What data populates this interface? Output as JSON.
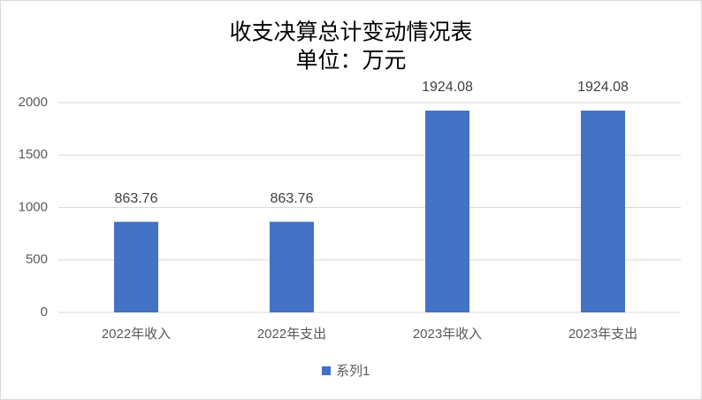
{
  "chart_data": {
    "type": "bar",
    "title": "收支决算总计变动情况表",
    "subtitle": "单位：万元",
    "categories": [
      "2022年收入",
      "2022年支出",
      "2023年收入",
      "2023年支出"
    ],
    "series": [
      {
        "name": "系列1",
        "color": "#4472c4",
        "values": [
          863.76,
          863.76,
          1924.08,
          1924.08
        ]
      }
    ],
    "ylim": [
      0,
      2000
    ],
    "yticks": [
      0,
      500,
      1000,
      1500,
      2000
    ],
    "grid": true,
    "legend": "bottom"
  }
}
